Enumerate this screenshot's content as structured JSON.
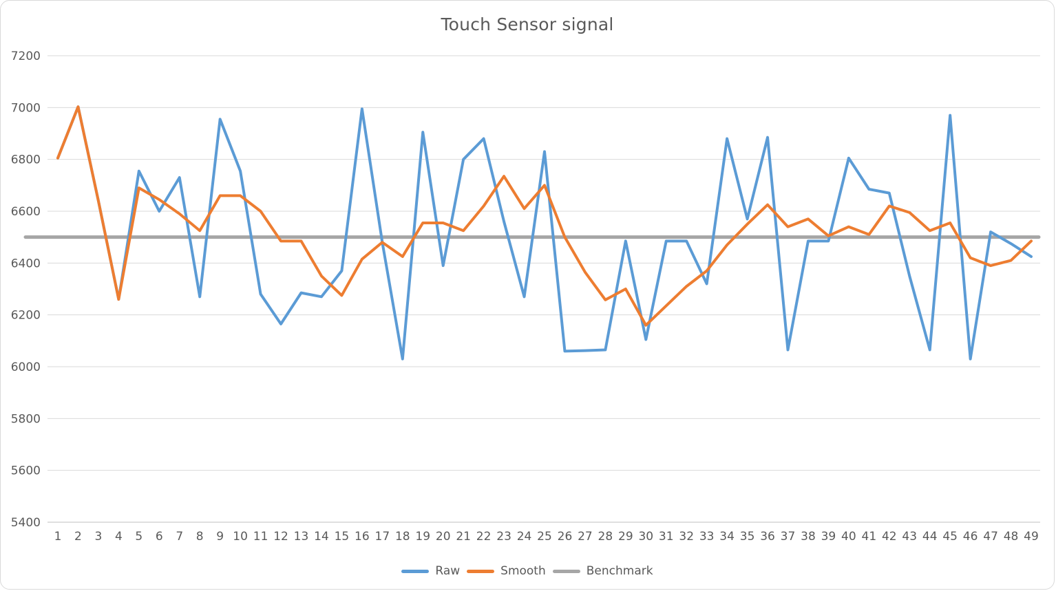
{
  "chart_data": {
    "type": "line",
    "title": "Touch Sensor signal",
    "xlabel": "",
    "ylabel": "",
    "ylim": [
      5400,
      7200
    ],
    "ytick_step": 200,
    "ytick_labels": [
      "5400",
      "5600",
      "5800",
      "6000",
      "6200",
      "6400",
      "6600",
      "6800",
      "7000",
      "7200"
    ],
    "grid": true,
    "legend_position": "bottom",
    "x": [
      1,
      2,
      3,
      4,
      5,
      6,
      7,
      8,
      9,
      10,
      11,
      12,
      13,
      14,
      15,
      16,
      17,
      18,
      19,
      20,
      21,
      22,
      23,
      24,
      25,
      26,
      27,
      28,
      29,
      30,
      31,
      32,
      33,
      34,
      35,
      36,
      37,
      38,
      39,
      40,
      41,
      42,
      43,
      44,
      45,
      46,
      47,
      48,
      49
    ],
    "series": [
      {
        "name": "Raw",
        "color": "#5B9BD5",
        "values": [
          6805,
          7003,
          6640,
          6260,
          6755,
          6600,
          6730,
          6270,
          6955,
          6755,
          6280,
          6165,
          6285,
          6270,
          6370,
          6995,
          6480,
          6030,
          6905,
          6390,
          6800,
          6880,
          6560,
          6270,
          6830,
          6060,
          6062,
          6065,
          6485,
          6105,
          6485,
          6485,
          6320,
          6880,
          6570,
          6885,
          6065,
          6485,
          6485,
          6805,
          6685,
          6670,
          6350,
          6065,
          6970,
          6030,
          6520,
          6475,
          6425
        ]
      },
      {
        "name": "Smooth",
        "color": "#ED7D31",
        "values": [
          6805,
          7003,
          6640,
          6260,
          6690,
          6645,
          6590,
          6525,
          6660,
          6660,
          6600,
          6485,
          6485,
          6350,
          6275,
          6415,
          6480,
          6425,
          6555,
          6555,
          6525,
          6620,
          6735,
          6610,
          6700,
          6500,
          6365,
          6258,
          6300,
          6160,
          6235,
          6310,
          6370,
          6470,
          6550,
          6625,
          6540,
          6570,
          6505,
          6540,
          6510,
          6620,
          6595,
          6525,
          6555,
          6420,
          6390,
          6410,
          6485
        ]
      },
      {
        "name": "Benchmark",
        "color": "#A6A6A6",
        "constant": 6500
      }
    ],
    "colors": {
      "grid": "#D9D9D9",
      "axis": "#BFBFBF",
      "text": "#595959"
    }
  }
}
